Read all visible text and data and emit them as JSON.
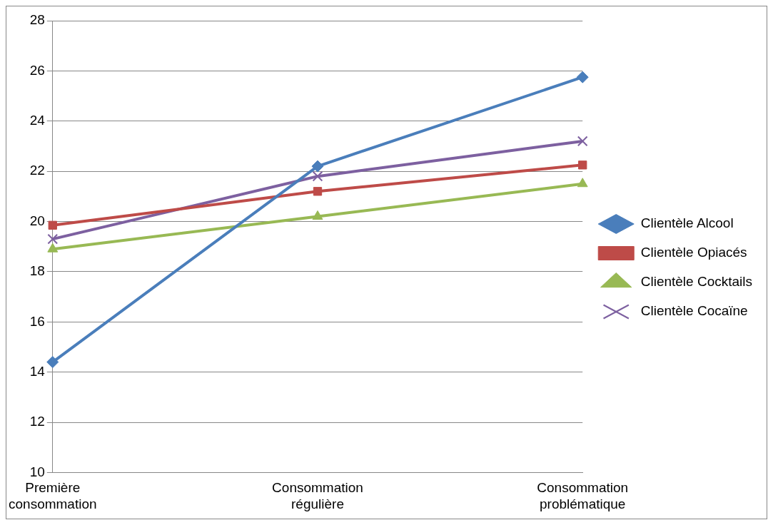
{
  "chart_data": {
    "type": "line",
    "categories": [
      "Première consommation",
      "Consommation régulière",
      "Consommation problématique"
    ],
    "series": [
      {
        "name": "Clientèle Alcool",
        "color": "#4a7ebb",
        "marker": "diamond",
        "values": [
          14.4,
          22.2,
          25.75
        ]
      },
      {
        "name": "Clientèle Opiacés",
        "color": "#be4b48",
        "marker": "square",
        "values": [
          19.85,
          21.2,
          22.25
        ]
      },
      {
        "name": "Clientèle Cocktails",
        "color": "#98b954",
        "marker": "triangle",
        "values": [
          18.9,
          20.2,
          21.5
        ]
      },
      {
        "name": "Clientèle Cocaïne",
        "color": "#7d60a0",
        "marker": "cross",
        "values": [
          19.3,
          21.8,
          23.2
        ]
      }
    ],
    "ylim": [
      10,
      28
    ],
    "yticks": [
      10,
      12,
      14,
      16,
      18,
      20,
      22,
      24,
      26,
      28
    ],
    "grid": "y",
    "legend": "right",
    "line_style": "solid"
  }
}
